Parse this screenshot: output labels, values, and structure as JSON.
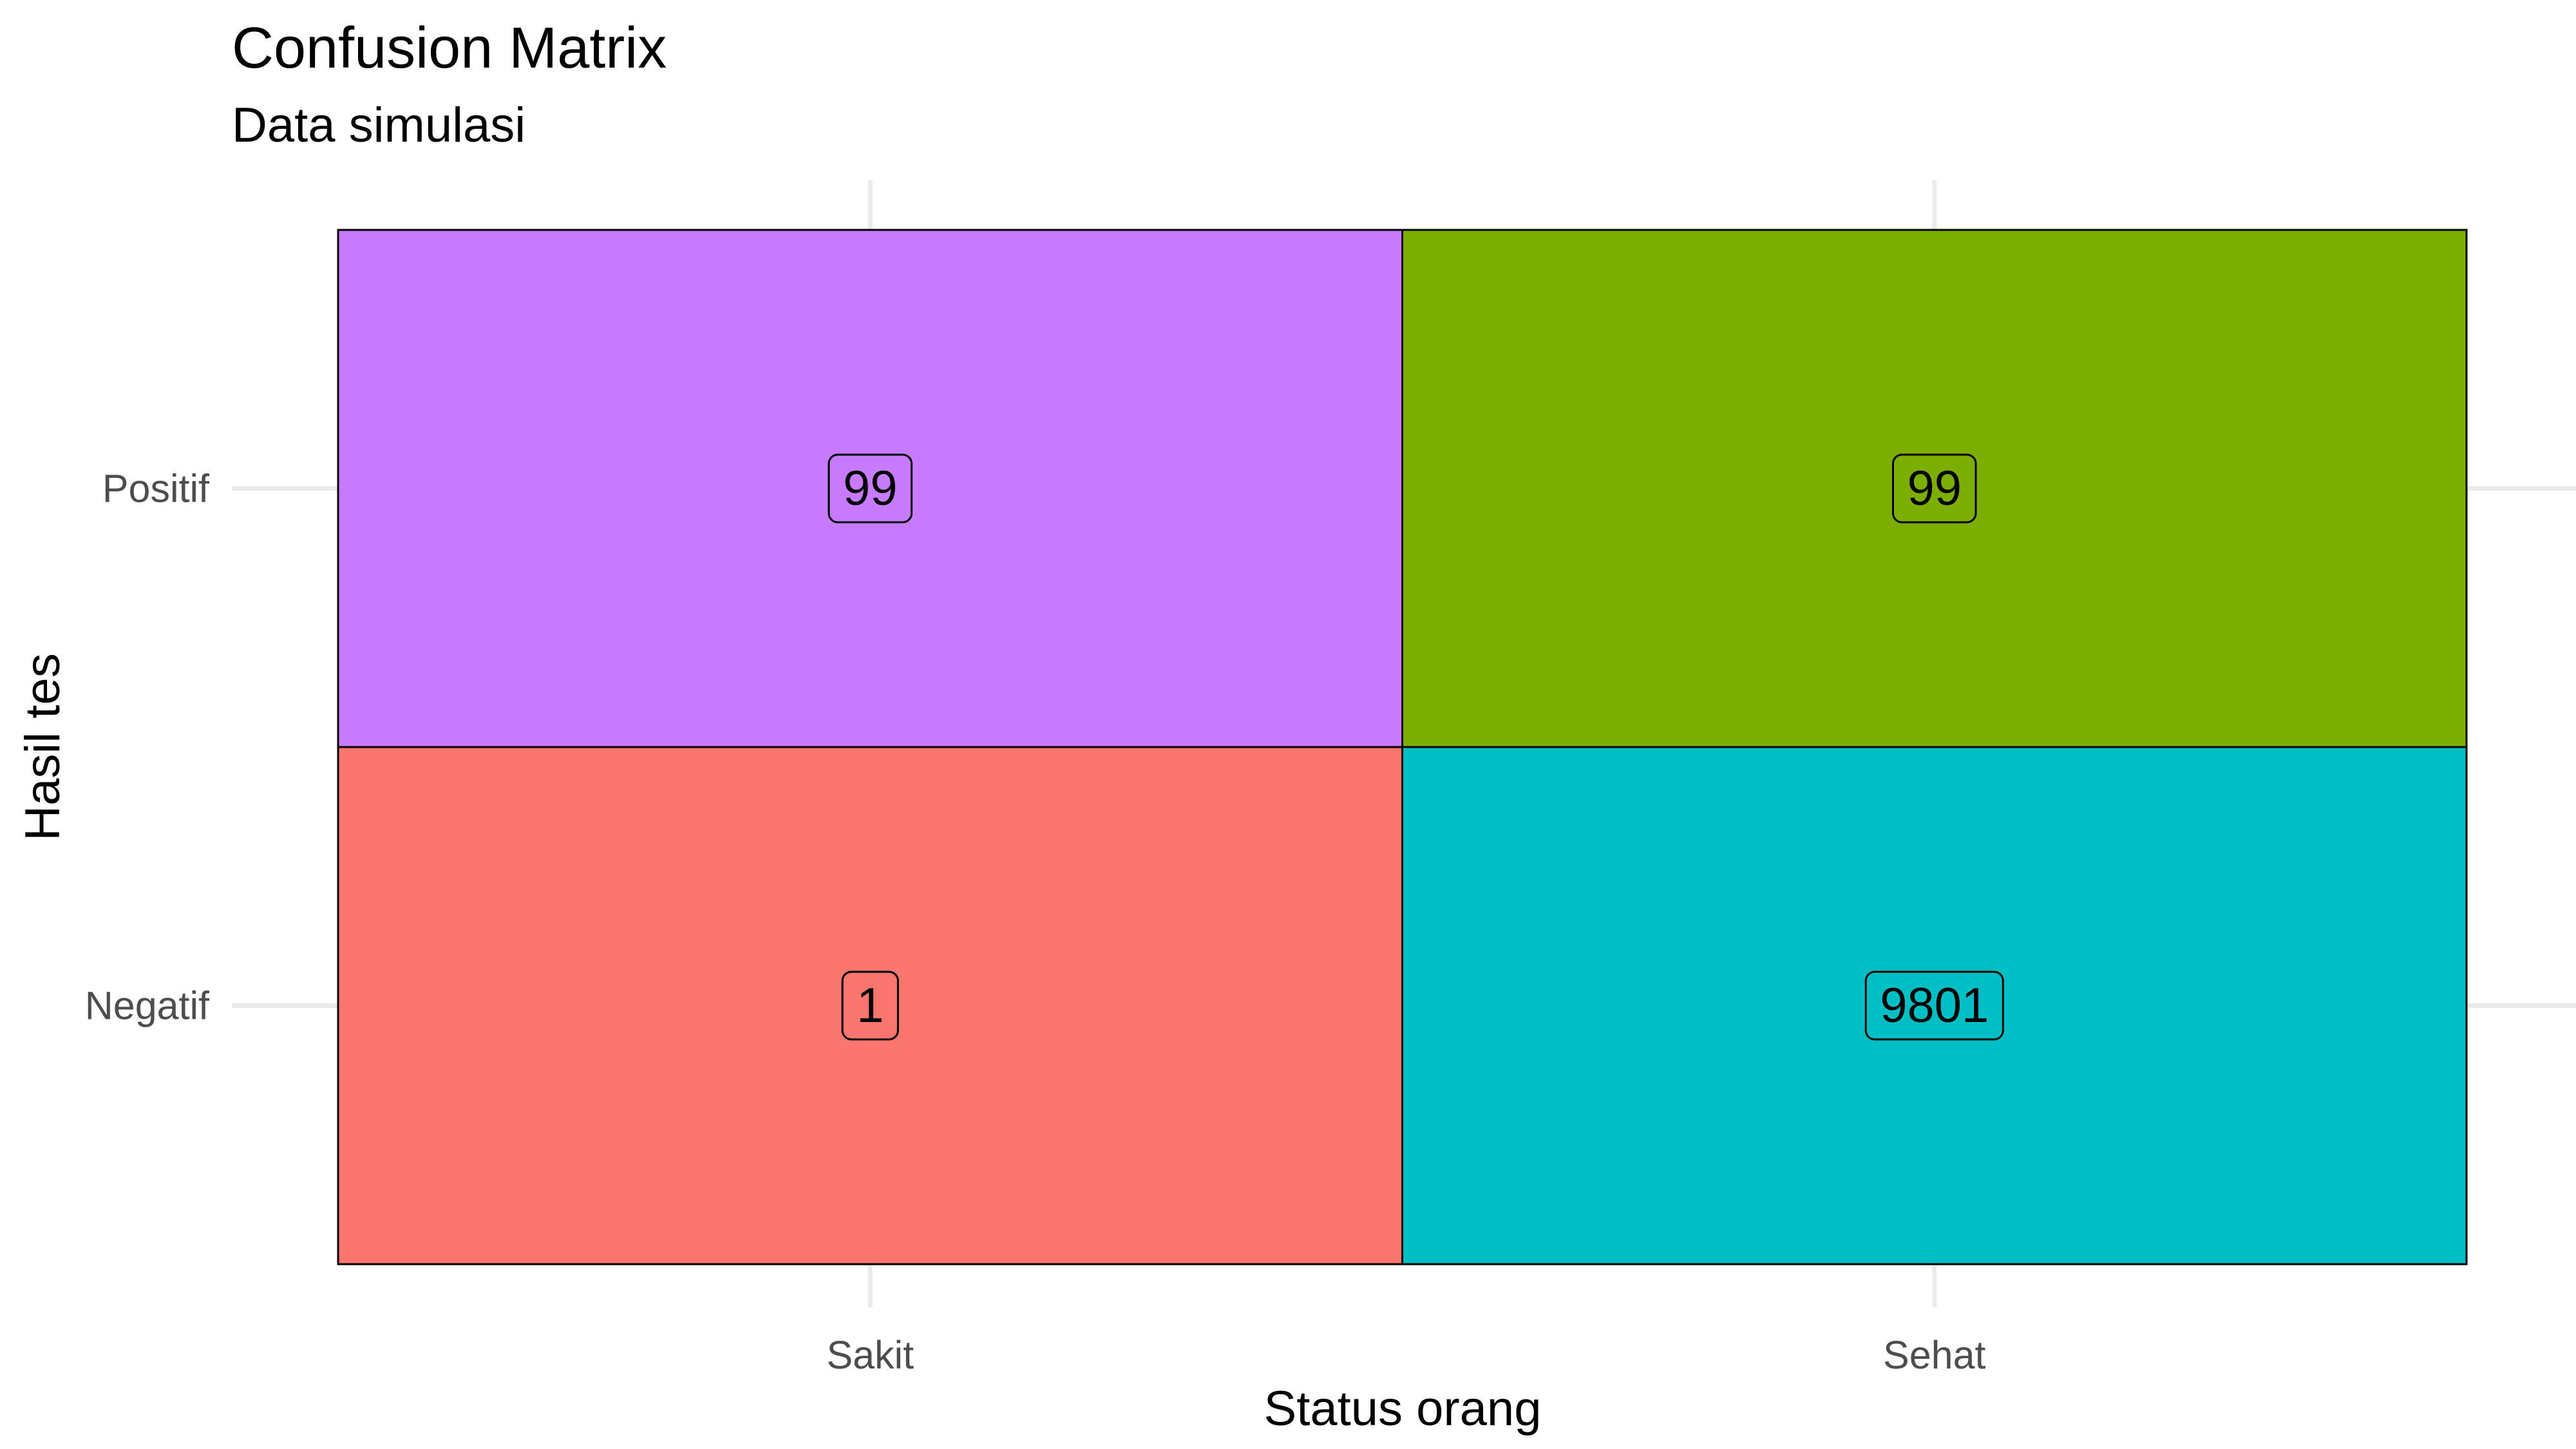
{
  "chart_data": {
    "type": "heatmap",
    "title": "Confusion Matrix",
    "subtitle": "Data simulasi",
    "xlabel": "Status orang",
    "ylabel": "Hasil tes",
    "x_categories": [
      "Sakit",
      "Sehat"
    ],
    "y_categories": [
      "Negatif",
      "Positif"
    ],
    "cells": [
      {
        "x": "Sakit",
        "y": "Positif",
        "value": 99,
        "color": "#C77CFF"
      },
      {
        "x": "Sehat",
        "y": "Positif",
        "value": 99,
        "color": "#7CAE00"
      },
      {
        "x": "Sakit",
        "y": "Negatif",
        "value": 1,
        "color": "#F8766D"
      },
      {
        "x": "Sehat",
        "y": "Negatif",
        "value": 9801,
        "color": "#00BFC4"
      }
    ],
    "grid": true,
    "legend": "none"
  }
}
